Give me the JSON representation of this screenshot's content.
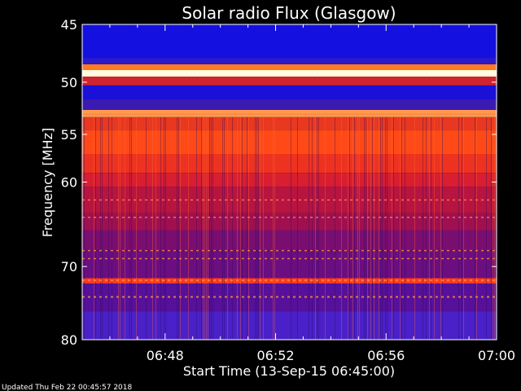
{
  "chart_data": {
    "type": "heatmap",
    "title": "Solar radio Flux (Glasgow)",
    "xlabel": "Start Time (13-Sep-15 06:45:00)",
    "ylabel": "Frequency [MHz]",
    "x_ticks": [
      "06:48",
      "06:52",
      "06:56",
      "07:00"
    ],
    "x_tick_minutes": [
      3,
      7,
      11,
      15
    ],
    "xlim_minutes": [
      0,
      15
    ],
    "y_ticks": [
      45,
      50,
      55,
      60,
      70,
      80
    ],
    "ylim": [
      45,
      80
    ],
    "y_scale": "log",
    "grid": false,
    "intensity_bands": [
      {
        "f0": 45.0,
        "f1": 47.8,
        "color": "#1410e0"
      },
      {
        "f0": 47.8,
        "f1": 48.4,
        "color": "#2a1ac8"
      },
      {
        "f0": 48.4,
        "f1": 48.9,
        "color": "#ff7a20"
      },
      {
        "f0": 48.9,
        "f1": 49.5,
        "color": "#fffad8"
      },
      {
        "f0": 49.5,
        "f1": 50.3,
        "color": "#d02430"
      },
      {
        "f0": 50.3,
        "f1": 51.6,
        "color": "#1a10d8"
      },
      {
        "f0": 51.6,
        "f1": 52.6,
        "color": "#3a1ab0"
      },
      {
        "f0": 52.6,
        "f1": 53.3,
        "color": "#ff9a50"
      },
      {
        "f0": 53.3,
        "f1": 54.6,
        "color": "#e83820"
      },
      {
        "f0": 54.6,
        "f1": 57.0,
        "color": "#ff4a18"
      },
      {
        "f0": 57.0,
        "f1": 59.0,
        "color": "#ee3220"
      },
      {
        "f0": 59.0,
        "f1": 60.5,
        "color": "#d81e30"
      },
      {
        "f0": 60.5,
        "f1": 63.5,
        "color": "#b81440"
      },
      {
        "f0": 63.5,
        "f1": 65.5,
        "color": "#a01050"
      },
      {
        "f0": 65.5,
        "f1": 68.0,
        "color": "#7a0e70"
      },
      {
        "f0": 68.0,
        "f1": 71.5,
        "color": "#6a0e80"
      },
      {
        "f0": 71.5,
        "f1": 72.2,
        "color": "#ff3a20"
      },
      {
        "f0": 72.2,
        "f1": 76.0,
        "color": "#56109a"
      },
      {
        "f0": 76.0,
        "f1": 80.0,
        "color": "#4a20c8"
      }
    ],
    "bright_lines_mhz": [
      49.2,
      53.0,
      62.0,
      64.0,
      68.0,
      69.0,
      71.8,
      74.0
    ]
  },
  "footer": {
    "updated": "Updated Thu Feb 22 00:45:57 2018"
  }
}
